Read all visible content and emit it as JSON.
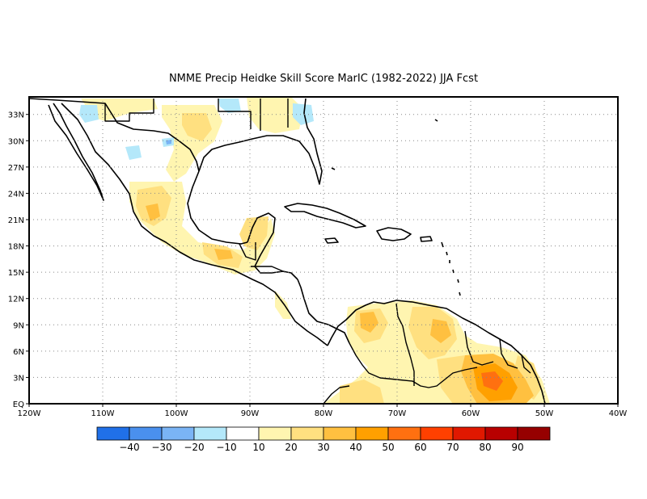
{
  "title": "NMME Precip Heidke Skill Score MarIC (1982-2022) JJA Fcst",
  "map": {
    "lon_range": [
      -120,
      -40
    ],
    "lat_range": [
      0,
      35
    ],
    "lat_ticks": [
      {
        "value": 33,
        "label": "33N"
      },
      {
        "value": 30,
        "label": "30N"
      },
      {
        "value": 27,
        "label": "27N"
      },
      {
        "value": 24,
        "label": "24N"
      },
      {
        "value": 21,
        "label": "21N"
      },
      {
        "value": 18,
        "label": "18N"
      },
      {
        "value": 15,
        "label": "15N"
      },
      {
        "value": 12,
        "label": "12N"
      },
      {
        "value": 9,
        "label": "9N"
      },
      {
        "value": 6,
        "label": "6N"
      },
      {
        "value": 3,
        "label": "3N"
      },
      {
        "value": 0,
        "label": "EQ"
      }
    ],
    "lon_ticks": [
      {
        "value": -120,
        "label": "120W"
      },
      {
        "value": -110,
        "label": "110W"
      },
      {
        "value": -100,
        "label": "100W"
      },
      {
        "value": -90,
        "label": "90W"
      },
      {
        "value": -80,
        "label": "80W"
      },
      {
        "value": -70,
        "label": "70W"
      },
      {
        "value": -60,
        "label": "60W"
      },
      {
        "value": -50,
        "label": "50W"
      },
      {
        "value": -40,
        "label": "40W"
      }
    ],
    "gridlines": "dotted"
  },
  "colorbar": {
    "colors": [
      "#2070e8",
      "#4a90ee",
      "#7ab4f5",
      "#b4e8fa",
      "#ffffff",
      "#fff5b0",
      "#ffe080",
      "#ffc040",
      "#ffa000",
      "#ff7010",
      "#ff4000",
      "#e01800",
      "#b80000",
      "#960000"
    ],
    "labels": [
      "-40",
      "-30",
      "-20",
      "-10",
      "10",
      "20",
      "30",
      "40",
      "50",
      "60",
      "70",
      "80",
      "90"
    ]
  },
  "legend": {
    "neg2": "#7ab4f5",
    "neg1": "#b4e8fa",
    "pos1": "#fff5b0",
    "pos2": "#ffe080",
    "pos3": "#ffc040",
    "pos4": "#ffa000",
    "pos5": "#ff7010"
  }
}
